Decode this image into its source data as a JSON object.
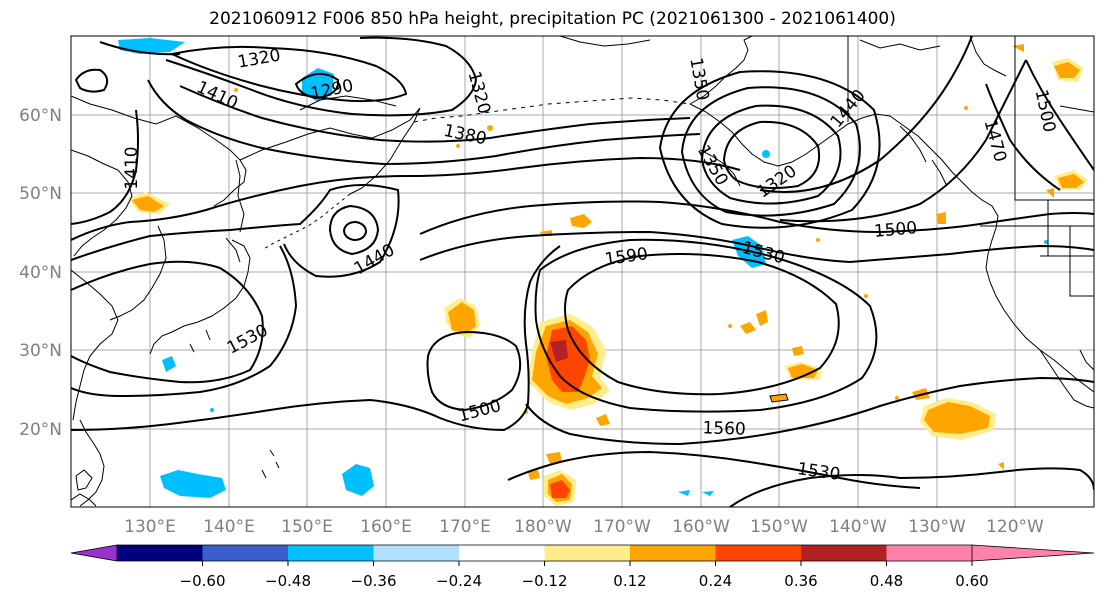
{
  "title": "2021060912 F006 850 hPa height, precipitation PC (2021061300 - 2021061400)",
  "lat_labels": [
    "60°N",
    "50°N",
    "40°N",
    "30°N",
    "20°N"
  ],
  "lon_labels": [
    "130°E",
    "140°E",
    "150°E",
    "160°E",
    "170°E",
    "180°W",
    "170°W",
    "160°W",
    "150°W",
    "140°W",
    "130°W",
    "120°W"
  ],
  "contour_labels": [
    {
      "text": "1320"
    },
    {
      "text": "1290"
    },
    {
      "text": "1410"
    },
    {
      "text": "1320"
    },
    {
      "text": "1350"
    },
    {
      "text": "1380"
    },
    {
      "text": "1410"
    },
    {
      "text": "1440"
    },
    {
      "text": "1350"
    },
    {
      "text": "1320"
    },
    {
      "text": "1500"
    },
    {
      "text": "1530"
    },
    {
      "text": "1590"
    },
    {
      "text": "1530"
    },
    {
      "text": "1500"
    },
    {
      "text": "1560"
    },
    {
      "text": "1530"
    },
    {
      "text": "1470"
    },
    {
      "text": "1500"
    },
    {
      "text": "1440"
    }
  ],
  "colorbar": {
    "colors": [
      "#9932cc",
      "#000080",
      "#3a5fcd",
      "#00bfff",
      "#b0e2ff",
      "#ffffff",
      "#ffec8b",
      "#ffa500",
      "#ff4500",
      "#b22222",
      "#ff82ab"
    ],
    "labels": [
      "−0.60",
      "−0.48",
      "−0.36",
      "−0.24",
      "−0.12",
      "0.12",
      "0.24",
      "0.36",
      "0.48",
      "0.60"
    ]
  }
}
